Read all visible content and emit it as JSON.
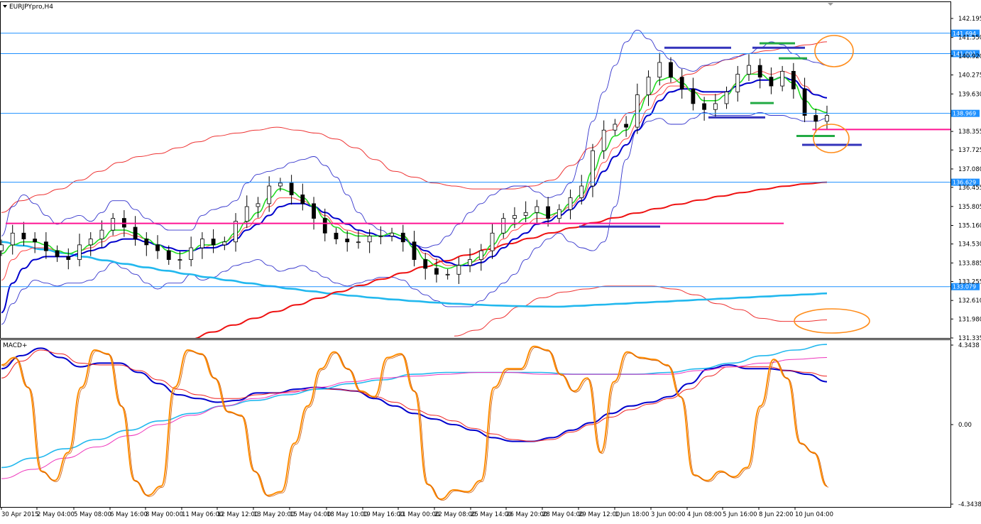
{
  "window": {
    "title": "EURJPYpro,H4",
    "menu_icon": "triangle-down-icon",
    "scroll_icon": "triangle-down-icon"
  },
  "colors": {
    "background": "#ffffff",
    "frame": "#000000",
    "candle": "#000000",
    "level_line": "#1e90ff",
    "level_tag": "#1e90ff",
    "pink_line": "#ff1493",
    "bollinger": "#3333cc",
    "ema_fast": "#22dd22",
    "ema_mid_thin": "#ff4444",
    "ema_blue": "#0000cc",
    "ema_red_long": "#ee1111",
    "ema_cyan_long": "#22b8ee",
    "outer_band": "#ee3333",
    "blue_marker": "#3333bb",
    "green_marker": "#22aa44",
    "orange_ellipse": "#ff8c1a",
    "macd_blue": "#0000cc",
    "macd_red": "#ee2222",
    "macd_cyan": "#22b8ee",
    "macd_magenta": "#ee33bb",
    "macd_orange": "#ff8c00"
  },
  "chart_data": [
    {
      "type": "line",
      "subtype": "candlestick",
      "instrument": "EURJPYpro,H4",
      "y_axis_ticks": [
        "142.195",
        "141.550",
        "140.920",
        "140.275",
        "139.630",
        "138.355",
        "137.725",
        "137.080",
        "136.455",
        "135.805",
        "135.160",
        "134.530",
        "133.885",
        "133.255",
        "132.610",
        "131.980",
        "131.335"
      ],
      "ylim": [
        131.335,
        142.195
      ],
      "x_axis_labels": [
        "30 Apr 2015",
        "2 May 04:00",
        "5 May 08:00",
        "6 May 16:00",
        "8 May 00:00",
        "11 May 06:00",
        "12 May 12:00",
        "13 May 20:00",
        "15 May 04:00",
        "18 May 10:00",
        "19 May 16:00",
        "21 May 00:00",
        "22 May 08:00",
        "25 May 14:00",
        "26 May 20:00",
        "28 May 04:00",
        "29 May 12:00",
        "1 Jun 18:00",
        "3 Jun 00:00",
        "4 Jun 08:00",
        "5 Jun 16:00",
        "8 Jun 22:00",
        "10 Jun 04:00"
      ],
      "horizontal_levels": [
        {
          "value": 141.694,
          "label": "141.694"
        },
        {
          "value": 141.001,
          "label": "141.001"
        },
        {
          "value": 138.969,
          "label": "138.969"
        },
        {
          "value": 136.629,
          "label": "136.629"
        },
        {
          "value": 133.079,
          "label": "133.079"
        }
      ],
      "pink_levels": [
        {
          "value": 135.23,
          "from_bar": 0,
          "to_bar": 0.78
        },
        {
          "value": 138.42,
          "from_bar": 0.85,
          "to_bar": 1.0
        }
      ],
      "close_series": [
        134.5,
        134.9,
        134.7,
        134.6,
        134.3,
        134.1,
        134.0,
        134.5,
        134.7,
        135.0,
        135.4,
        135.1,
        134.7,
        134.5,
        134.3,
        134.0,
        134.0,
        134.4,
        134.7,
        134.5,
        134.6,
        135.3,
        135.8,
        135.9,
        136.5,
        136.6,
        136.2,
        135.9,
        135.4,
        134.9,
        134.7,
        134.6,
        134.6,
        134.8,
        134.8,
        134.9,
        134.6,
        134.0,
        133.7,
        133.5,
        133.5,
        133.8,
        134.0,
        134.3,
        134.9,
        135.4,
        135.5,
        135.6,
        135.8,
        135.4,
        135.7,
        136.1,
        136.5,
        137.7,
        138.4,
        138.6,
        138.5,
        139.6,
        140.2,
        140.7,
        140.2,
        139.8,
        139.3,
        139.1,
        139.3,
        139.7,
        140.3,
        140.6,
        140.2,
        139.9,
        140.4,
        139.8,
        138.9,
        138.7,
        138.9
      ],
      "indicators": {
        "ema_fast_green": [
          134.2,
          134.5,
          134.6,
          134.6,
          134.5,
          134.3,
          134.2,
          134.3,
          134.5,
          134.7,
          135.0,
          135.0,
          134.9,
          134.7,
          134.5,
          134.3,
          134.2,
          134.3,
          134.5,
          134.5,
          134.6,
          134.9,
          135.3,
          135.6,
          136.1,
          136.4,
          136.3,
          136.1,
          135.8,
          135.4,
          135.1,
          134.9,
          134.8,
          134.8,
          134.8,
          134.9,
          134.8,
          134.4,
          134.0,
          133.8,
          133.7,
          133.8,
          133.9,
          134.1,
          134.5,
          134.9,
          135.2,
          135.4,
          135.6,
          135.5,
          135.6,
          135.9,
          136.2,
          137.0,
          137.7,
          138.2,
          138.4,
          139.0,
          139.6,
          140.1,
          140.2,
          140.0,
          139.7,
          139.4,
          139.4,
          139.6,
          140.0,
          140.3,
          140.3,
          140.1,
          140.2,
          140.0,
          139.4,
          139.1,
          139.0
        ],
        "ema_blue": [
          132.2,
          133.2,
          133.7,
          134.0,
          134.1,
          134.1,
          134.1,
          134.2,
          134.3,
          134.4,
          134.6,
          134.7,
          134.7,
          134.6,
          134.5,
          134.4,
          134.3,
          134.3,
          134.4,
          134.4,
          134.5,
          134.7,
          135.0,
          135.2,
          135.5,
          135.8,
          135.9,
          135.9,
          135.8,
          135.6,
          135.4,
          135.2,
          135.0,
          134.9,
          134.8,
          134.8,
          134.7,
          134.5,
          134.3,
          134.1,
          133.9,
          133.8,
          133.8,
          133.9,
          134.1,
          134.4,
          134.7,
          134.9,
          135.2,
          135.3,
          135.5,
          135.7,
          136.0,
          136.5,
          137.0,
          137.5,
          137.9,
          138.4,
          138.9,
          139.4,
          139.7,
          139.8,
          139.8,
          139.7,
          139.7,
          139.7,
          139.9,
          140.0,
          140.1,
          140.1,
          140.2,
          140.1,
          139.8,
          139.6,
          139.5
        ],
        "ema_thin_red": [
          133.3,
          134.0,
          134.3,
          134.4,
          134.4,
          134.3,
          134.2,
          134.3,
          134.4,
          134.6,
          134.8,
          134.9,
          134.8,
          134.7,
          134.5,
          134.4,
          134.3,
          134.3,
          134.4,
          134.5,
          134.6,
          134.8,
          135.1,
          135.4,
          135.8,
          136.1,
          136.1,
          136.0,
          135.8,
          135.5,
          135.2,
          135.0,
          134.9,
          134.8,
          134.8,
          134.9,
          134.8,
          134.5,
          134.2,
          134.0,
          133.8,
          133.8,
          133.9,
          134.0,
          134.3,
          134.7,
          135.0,
          135.2,
          135.4,
          135.4,
          135.6,
          135.8,
          136.1,
          136.7,
          137.3,
          137.8,
          138.1,
          138.6,
          139.1,
          139.6,
          139.9,
          139.9,
          139.7,
          139.6,
          139.6,
          139.7,
          140.0,
          140.3,
          140.4,
          140.3,
          140.4,
          140.3,
          139.9,
          139.6,
          139.5
        ],
        "ema_long_red": {
          "start": 131.3,
          "end": 136.629,
          "start_bar": 0.23,
          "end_bar": 1.0
        },
        "ema_long_cyan": {
          "start": 134.6,
          "min": 132.4,
          "end": 132.85
        },
        "bollinger_upper": [
          134.8,
          135.8,
          136.2,
          135.9,
          135.5,
          135.2,
          135.4,
          135.5,
          135.3,
          135.6,
          136.0,
          136.0,
          135.7,
          135.4,
          135.2,
          135.0,
          135.0,
          135.0,
          135.5,
          135.7,
          135.8,
          136.0,
          136.6,
          136.9,
          137.0,
          137.1,
          137.3,
          137.4,
          137.5,
          137.2,
          136.8,
          136.2,
          135.6,
          135.2,
          135.0,
          134.8,
          134.7,
          134.5,
          134.4,
          134.5,
          134.8,
          135.2,
          135.6,
          135.9,
          136.2,
          136.4,
          136.5,
          136.5,
          136.3,
          136.1,
          136.2,
          136.6,
          137.4,
          138.7,
          139.7,
          140.6,
          141.4,
          141.8,
          141.5,
          141.1,
          140.8,
          140.5,
          140.4,
          140.6,
          140.7,
          140.8,
          140.9,
          141.0,
          141.2,
          141.4,
          141.3,
          141.0,
          140.8,
          140.7,
          140.6
        ],
        "bollinger_lower": [
          131.8,
          132.5,
          133.0,
          133.3,
          133.2,
          133.1,
          133.2,
          133.2,
          133.3,
          133.6,
          133.9,
          133.7,
          133.5,
          133.2,
          133.0,
          133.2,
          133.2,
          133.5,
          133.3,
          133.4,
          133.6,
          133.8,
          133.9,
          134.0,
          133.8,
          133.6,
          133.7,
          133.8,
          133.6,
          133.4,
          133.2,
          133.1,
          133.2,
          133.3,
          133.4,
          133.4,
          133.3,
          133.0,
          132.8,
          132.6,
          132.4,
          132.4,
          132.4,
          132.6,
          132.9,
          133.2,
          133.5,
          134.0,
          134.4,
          134.7,
          134.9,
          134.6,
          134.4,
          134.3,
          134.6,
          135.8,
          137.4,
          138.4,
          138.7,
          138.8,
          138.6,
          138.6,
          138.8,
          139.0,
          138.9,
          138.9,
          138.9,
          138.9,
          139.0,
          138.9,
          138.9,
          138.8,
          138.7,
          138.7,
          138.8
        ],
        "outer_band_upper": [
          135.6,
          136.0,
          136.2,
          136.4,
          136.7,
          137.0,
          137.3,
          137.5,
          137.6,
          137.8,
          138.0,
          138.2,
          138.3,
          138.4,
          138.5,
          138.4,
          138.3,
          138.1,
          137.8,
          137.4,
          137.0,
          136.8,
          136.6,
          136.5,
          136.4,
          136.4,
          136.4,
          136.5,
          136.7,
          137.2,
          137.8,
          138.4,
          139.0,
          139.6,
          140.0,
          140.3,
          140.6,
          140.8,
          141.0,
          141.1,
          141.2,
          141.3,
          141.4
        ],
        "outer_band_lower": [
          131.4,
          131.6,
          132.0,
          132.4,
          132.7,
          132.9,
          133.0,
          133.1,
          133.1,
          133.1,
          133.0,
          132.8,
          132.5,
          132.3,
          132.0,
          131.9,
          131.9,
          131.95
        ]
      },
      "annotations": {
        "blue_markers": [
          {
            "value": 141.2
          },
          {
            "value": 141.2
          },
          {
            "value": 138.83
          },
          {
            "value": 135.12
          },
          {
            "value": 137.9
          }
        ],
        "green_markers": [
          {
            "value": 141.35
          },
          {
            "value": 140.84
          },
          {
            "value": 139.32
          },
          {
            "value": 138.2
          }
        ],
        "orange_ellipses": [
          "near 141.2 at right edge",
          "near 138.0 at right edge",
          "near 132.0 at right edge"
        ]
      }
    },
    {
      "type": "line",
      "name": "MACD+",
      "y_axis_ticks": [
        "4.3438",
        "0.00",
        "-4.3438"
      ],
      "ylim": [
        -4.3438,
        4.3438
      ],
      "series": [
        {
          "name": "MACD+",
          "values": [
            3.0,
            3.7,
            4.1,
            3.6,
            3.1,
            3.3,
            3.3,
            2.8,
            2.2,
            1.6,
            1.4,
            1.2,
            1.3,
            1.7,
            1.7,
            1.9,
            2.0,
            1.9,
            1.8,
            1.4,
            1.0,
            0.6,
            0.3,
            0.0,
            -0.3,
            -0.7,
            -0.9,
            -0.9,
            -0.7,
            -0.3,
            0.1,
            0.6,
            1.0,
            1.2,
            1.5,
            2.2,
            3.0,
            3.2,
            3.0,
            3.0,
            2.9,
            2.7,
            2.3
          ]
        },
        {
          "name": "",
          "values": [
            2.5,
            3.4,
            4.0,
            3.8,
            3.3,
            3.2,
            3.2,
            2.9,
            2.4,
            1.9,
            1.6,
            1.4,
            1.4,
            1.6,
            1.7,
            1.8,
            1.9,
            1.9,
            1.8,
            1.5,
            1.2,
            0.8,
            0.5,
            0.2,
            -0.2,
            -0.5,
            -0.8,
            -0.9,
            -0.8,
            -0.4,
            0.0,
            0.4,
            0.8,
            1.1,
            1.4,
            1.9,
            2.6,
            3.1,
            3.1,
            3.1,
            2.9,
            2.8,
            2.6
          ]
        },
        {
          "name": "",
          "values": [
            -2.3,
            -1.8,
            -1.3,
            -0.8,
            -0.3,
            0.2,
            0.6,
            1.0,
            1.3,
            1.6,
            1.9,
            2.2,
            2.4,
            2.7,
            2.8,
            2.8,
            2.8,
            2.8,
            2.7,
            2.7,
            2.7,
            2.8,
            3.0,
            3.3,
            3.7,
            4.0,
            4.3
          ]
        },
        {
          "name": "",
          "values": [
            -2.9,
            -2.4,
            -1.8,
            -1.2,
            -0.6,
            0.0,
            0.5,
            1.0,
            1.4,
            1.7,
            2.0,
            2.3,
            2.5,
            2.6,
            2.7,
            2.8,
            2.8,
            2.7,
            2.7,
            2.7,
            2.7,
            2.7,
            2.9,
            3.1,
            3.3,
            3.5,
            3.6
          ]
        },
        {
          "name": "",
          "values": [
            3.2,
            3.6,
            2.0,
            -2.5,
            -3.0,
            -1.5,
            2.0,
            4.0,
            3.8,
            1.0,
            -3.0,
            -3.8,
            -3.3,
            2.0,
            4.0,
            3.8,
            2.5,
            0.7,
            0.5,
            -2.5,
            -3.8,
            -3.6,
            -1.0,
            1.0,
            3.0,
            3.9,
            3.0,
            1.8,
            1.5,
            3.6,
            3.8,
            1.8,
            -3.2,
            -4.0,
            -3.5,
            -3.6,
            -3.0,
            2.0,
            3.0,
            3.0,
            4.2,
            4.0,
            2.7,
            1.8,
            2.5,
            -1.5,
            2.3,
            3.9,
            3.6,
            3.5,
            3.2,
            1.5,
            -2.7,
            -3.0,
            -2.5,
            -2.8,
            -2.3,
            1.0,
            3.5,
            2.5,
            -1.0,
            -1.5,
            -3.3
          ]
        }
      ]
    }
  ]
}
